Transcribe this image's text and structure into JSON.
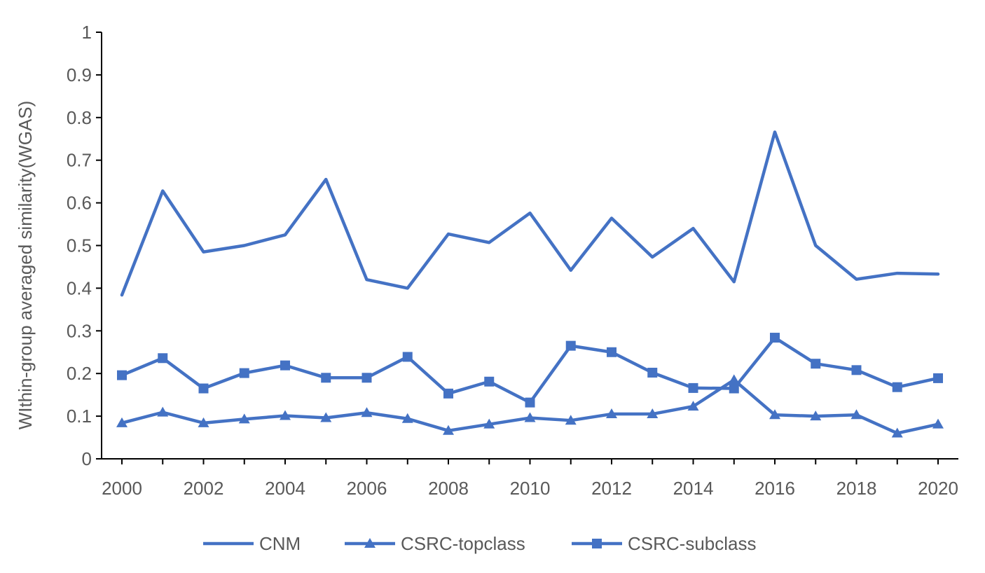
{
  "chart_data": {
    "type": "line",
    "title": "",
    "xlabel": "",
    "ylabel": "WIthin-group averaged similarity(WGAS)",
    "x": [
      2000,
      2001,
      2002,
      2003,
      2004,
      2005,
      2006,
      2007,
      2008,
      2009,
      2010,
      2011,
      2012,
      2013,
      2014,
      2015,
      2016,
      2017,
      2018,
      2019,
      2020
    ],
    "x_tick_labels": [
      "2000",
      "2002",
      "2004",
      "2006",
      "2008",
      "2010",
      "2012",
      "2014",
      "2016",
      "2018",
      "2020"
    ],
    "y_tick_labels": [
      "0",
      "0.1",
      "0.2",
      "0.3",
      "0.4",
      "0.5",
      "0.6",
      "0.7",
      "0.8",
      "0.9",
      "1"
    ],
    "ylim": [
      0,
      1
    ],
    "grid": false,
    "legend_position": "bottom",
    "series": [
      {
        "name": "CNM",
        "marker": "none",
        "color": "#4472C4",
        "values": [
          0.384,
          0.628,
          0.485,
          0.5,
          0.525,
          0.655,
          0.42,
          0.4,
          0.527,
          0.507,
          0.576,
          0.442,
          0.564,
          0.473,
          0.54,
          0.415,
          0.766,
          0.5,
          0.421,
          0.435,
          0.433
        ]
      },
      {
        "name": "CSRC-topclass",
        "marker": "triangle",
        "color": "#4472C4",
        "values": [
          0.084,
          0.109,
          0.084,
          0.093,
          0.101,
          0.096,
          0.108,
          0.094,
          0.066,
          0.081,
          0.096,
          0.09,
          0.105,
          0.105,
          0.123,
          0.185,
          0.103,
          0.1,
          0.103,
          0.06,
          0.081
        ]
      },
      {
        "name": "CSRC-subclass",
        "marker": "square",
        "color": "#4472C4",
        "values": [
          0.196,
          0.236,
          0.165,
          0.201,
          0.219,
          0.19,
          0.19,
          0.239,
          0.153,
          0.181,
          0.132,
          0.265,
          0.25,
          0.202,
          0.166,
          0.165,
          0.284,
          0.223,
          0.208,
          0.168,
          0.189
        ]
      }
    ]
  }
}
